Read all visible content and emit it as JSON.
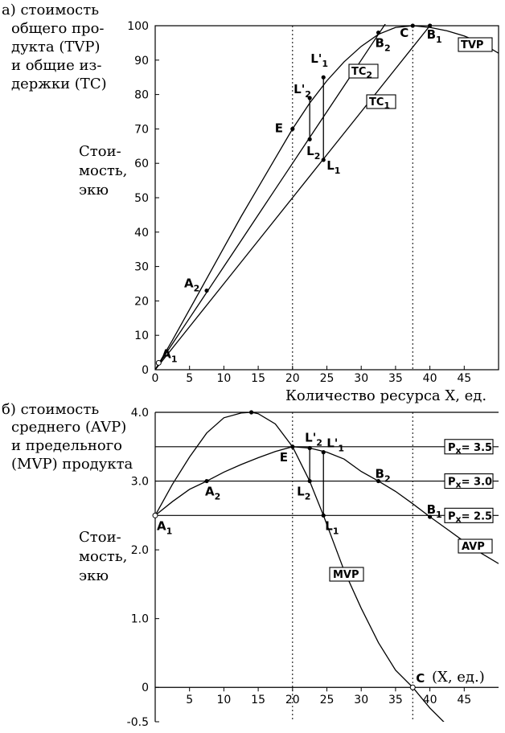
{
  "chart_data": [
    {
      "type": "line",
      "panel_label": "а)",
      "title_lines": [
        "стоимость",
        "общего про-",
        "дукта (TVP)",
        "и общие из-",
        "держки (TC)"
      ],
      "ylabel_lines": [
        "Стои-",
        "мость,",
        "экю"
      ],
      "xlabel": "Количество ресурса X, ед.",
      "xlim": [
        0,
        50
      ],
      "ylim": [
        0,
        100
      ],
      "x_ticks": [
        0,
        5,
        10,
        15,
        20,
        25,
        30,
        35,
        40,
        45
      ],
      "y_ticks": [
        0,
        10,
        20,
        30,
        40,
        50,
        60,
        70,
        80,
        90,
        100
      ],
      "series": [
        {
          "name": "TVP",
          "x": [
            0,
            2.5,
            5,
            7.5,
            10,
            12.5,
            15,
            17.5,
            20,
            22.5,
            25,
            27.5,
            30,
            32.5,
            35,
            37.5,
            40,
            42.5,
            45,
            47.5,
            50
          ],
          "values": [
            0,
            8.5,
            17.5,
            26.5,
            35.5,
            44.5,
            53,
            61.5,
            70,
            77.5,
            84,
            89.5,
            94,
            97.5,
            99.5,
            100,
            99.5,
            98.5,
            97,
            95,
            92
          ]
        },
        {
          "name": "TC2",
          "x": [
            0,
            2.5,
            5,
            7.5,
            10,
            12.5,
            15,
            17.5,
            20,
            22.5,
            25,
            27.5,
            30,
            32.5,
            35
          ],
          "values": [
            0,
            7.5,
            15,
            22.5,
            30,
            37.5,
            45,
            52.5,
            60,
            67.5,
            75,
            82.5,
            90,
            97.5,
            105
          ]
        },
        {
          "name": "TC1",
          "x": [
            0,
            5,
            10,
            15,
            20,
            25,
            30,
            35,
            40,
            45
          ],
          "values": [
            0,
            12.5,
            25,
            37.5,
            50,
            62.5,
            75,
            87.5,
            100,
            112.5
          ]
        }
      ],
      "points": [
        {
          "label": "A",
          "sub": "1",
          "x": 0.5,
          "y": 2
        },
        {
          "label": "A",
          "sub": "2",
          "x": 7.5,
          "y": 23
        },
        {
          "label": "E",
          "x": 20,
          "y": 70
        },
        {
          "label": "L'",
          "sub": "2",
          "x": 22.5,
          "y": 79
        },
        {
          "label": "L",
          "sub": "2",
          "x": 22.5,
          "y": 67
        },
        {
          "label": "L'",
          "sub": "1",
          "x": 24.5,
          "y": 85
        },
        {
          "label": "L",
          "sub": "1",
          "x": 24.5,
          "y": 61
        },
        {
          "label": "B",
          "sub": "2",
          "x": 32.5,
          "y": 98
        },
        {
          "label": "C",
          "x": 37.5,
          "y": 100
        },
        {
          "label": "B",
          "sub": "1",
          "x": 40,
          "y": 100
        }
      ],
      "ref_lines_x": [
        20,
        37.5
      ]
    },
    {
      "type": "line",
      "panel_label": "б)",
      "title_lines": [
        "стоимость",
        "среднего (AVP)",
        "и предельного",
        "(MVP) продукта"
      ],
      "ylabel_lines": [
        "Стои-",
        "мость,",
        "экю"
      ],
      "xlabel": "(X, ед.)",
      "xlim": [
        0,
        50
      ],
      "ylim": [
        -0.5,
        4.0
      ],
      "x_ticks": [
        5,
        10,
        15,
        20,
        25,
        30,
        35,
        40,
        45
      ],
      "y_ticks": [
        -0.5,
        0,
        1.0,
        2.0,
        3.0,
        4.0
      ],
      "series": [
        {
          "name": "AVP",
          "x": [
            0,
            2.5,
            5,
            7.5,
            10,
            12.5,
            15,
            17.5,
            20,
            22.5,
            25,
            27.5,
            30,
            32.5,
            35,
            37.5,
            40,
            42.5,
            45,
            47.5,
            50
          ],
          "values": [
            2.5,
            2.7,
            2.88,
            3.0,
            3.13,
            3.24,
            3.34,
            3.43,
            3.5,
            3.48,
            3.42,
            3.32,
            3.14,
            3.0,
            2.85,
            2.67,
            2.48,
            2.3,
            2.12,
            1.95,
            1.8
          ]
        },
        {
          "name": "MVP",
          "x": [
            0,
            2.5,
            5,
            7.5,
            10,
            12.5,
            14,
            15,
            17.5,
            20,
            22.5,
            24.5,
            27.5,
            30,
            32.5,
            35,
            37.5,
            40,
            42.5,
            45,
            47.5,
            50
          ],
          "values": [
            2.5,
            2.95,
            3.35,
            3.7,
            3.92,
            3.99,
            4.0,
            3.98,
            3.83,
            3.5,
            3.0,
            2.5,
            1.7,
            1.15,
            0.65,
            0.25,
            0,
            -0.3,
            -0.55,
            -0.75,
            -0.9,
            -1.0
          ]
        }
      ],
      "price_lines": [
        {
          "label": "P",
          "sub": "x",
          "value_text": "= 3.5",
          "y": 3.5
        },
        {
          "label": "P",
          "sub": "x",
          "value_text": "= 3.0",
          "y": 3.0
        },
        {
          "label": "P",
          "sub": "x",
          "value_text": "= 2.5",
          "y": 2.5
        }
      ],
      "points": [
        {
          "label": "A",
          "sub": "1",
          "x": 0,
          "y": 2.5
        },
        {
          "label": "A",
          "sub": "2",
          "x": 7.5,
          "y": 3.0
        },
        {
          "label": "E",
          "x": 20,
          "y": 3.5
        },
        {
          "label": "L'",
          "sub": "2",
          "x": 22.5,
          "y": 3.48
        },
        {
          "label": "L'",
          "sub": "1",
          "x": 24.5,
          "y": 3.42
        },
        {
          "label": "L",
          "sub": "2",
          "x": 22.5,
          "y": 3.0
        },
        {
          "label": "L",
          "sub": "1",
          "x": 24.5,
          "y": 2.5
        },
        {
          "label": "B",
          "sub": "2",
          "x": 32.5,
          "y": 3.0
        },
        {
          "label": "B",
          "sub": "1",
          "x": 40,
          "y": 2.48
        },
        {
          "label": "C",
          "x": 37.5,
          "y": 0
        },
        {
          "label": "",
          "x": 14,
          "y": 4.0
        }
      ],
      "ref_lines_x": [
        20,
        37.5
      ]
    }
  ]
}
